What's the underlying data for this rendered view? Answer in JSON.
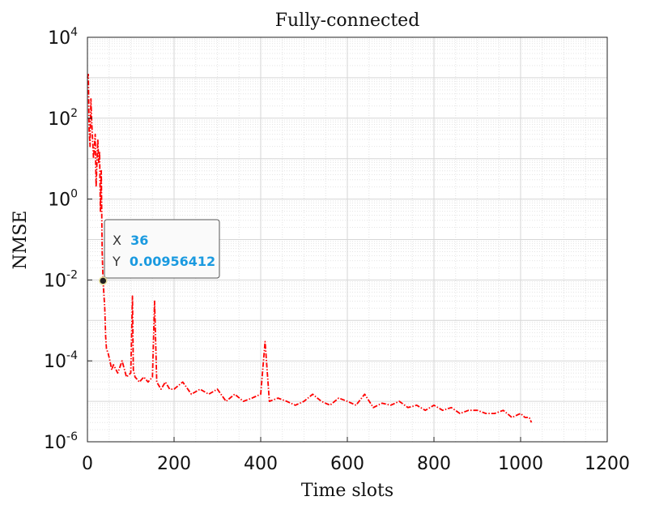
{
  "chart_data": {
    "type": "line",
    "title": "Fully-connected",
    "xlabel": "Time slots",
    "ylabel": "NMSE",
    "xlim": [
      0,
      1200
    ],
    "ylim": [
      1e-06,
      10000.0
    ],
    "yscale": "log",
    "grid": true,
    "minor_grid": true,
    "x_ticks": [
      "0",
      "200",
      "400",
      "600",
      "800",
      "1000",
      "1200"
    ],
    "y_ticks": [
      {
        "base": "10",
        "exp": "-6"
      },
      {
        "base": "10",
        "exp": "-4"
      },
      {
        "base": "10",
        "exp": "-2"
      },
      {
        "base": "10",
        "exp": "0"
      },
      {
        "base": "10",
        "exp": "2"
      },
      {
        "base": "10",
        "exp": "4"
      }
    ],
    "series": [
      {
        "color": "#ff0000",
        "style": "dash-dot",
        "x": [
          0,
          2,
          4,
          6,
          8,
          10,
          14,
          18,
          20,
          24,
          26,
          28,
          30,
          32,
          34,
          36,
          40,
          42,
          44,
          48,
          52,
          56,
          60,
          70,
          80,
          90,
          100,
          104,
          106,
          110,
          120,
          130,
          140,
          150,
          155,
          160,
          170,
          180,
          190,
          200,
          220,
          240,
          260,
          280,
          300,
          320,
          340,
          360,
          380,
          400,
          410,
          420,
          440,
          460,
          480,
          500,
          520,
          540,
          560,
          580,
          600,
          620,
          640,
          660,
          680,
          700,
          720,
          740,
          760,
          780,
          800,
          820,
          840,
          860,
          880,
          900,
          920,
          940,
          960,
          980,
          1000,
          1010,
          1020,
          1025
        ],
        "y": [
          1000.0,
          1200.0,
          50,
          20,
          300,
          80,
          10,
          40,
          2,
          30,
          8,
          15,
          0.5,
          5,
          0.05,
          0.00956412,
          0.002,
          0.0004,
          0.0002,
          0.00015,
          0.0001,
          6e-05,
          8e-05,
          5e-05,
          0.0001,
          4e-05,
          5e-05,
          0.004,
          6e-05,
          4e-05,
          3e-05,
          4e-05,
          3e-05,
          4e-05,
          0.003,
          3e-05,
          2e-05,
          3e-05,
          2e-05,
          2e-05,
          3e-05,
          1.5e-05,
          2e-05,
          1.5e-05,
          2e-05,
          1e-05,
          1.5e-05,
          1e-05,
          1.2e-05,
          1.5e-05,
          0.0003,
          1e-05,
          1.2e-05,
          1e-05,
          8e-06,
          1e-05,
          1.5e-05,
          1e-05,
          8e-06,
          1.2e-05,
          1e-05,
          8e-06,
          1.5e-05,
          7e-06,
          9e-06,
          8e-06,
          1e-05,
          7e-06,
          8e-06,
          6e-06,
          8e-06,
          6e-06,
          7e-06,
          5e-06,
          6e-06,
          6e-06,
          5e-06,
          5e-06,
          6e-06,
          4e-06,
          5e-06,
          4e-06,
          4e-06,
          3e-06
        ]
      }
    ],
    "datatip": {
      "x_key": "X",
      "x_value": "36",
      "y_key": "Y",
      "y_value": "0.00956412",
      "x": 36,
      "y": 0.00956412
    }
  }
}
